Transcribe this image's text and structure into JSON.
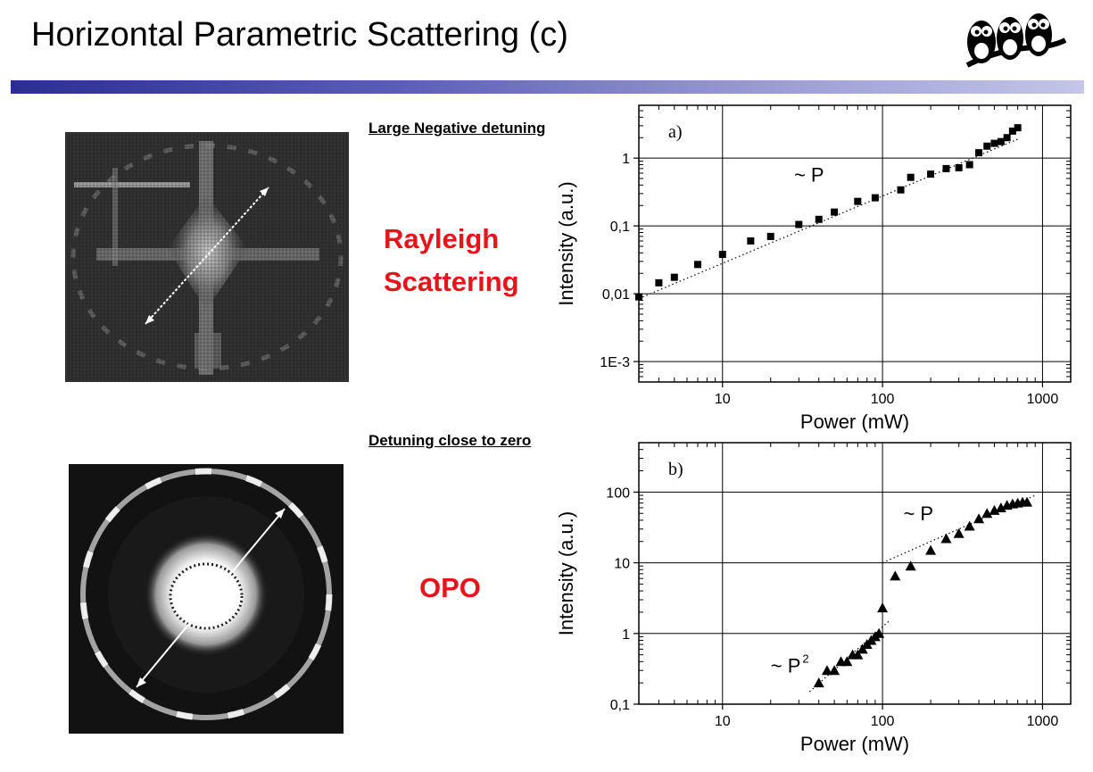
{
  "slide": {
    "title": "Horizontal Parametric Scattering (c)",
    "accent_color": "#2c2e92",
    "label_color": "#e8141b"
  },
  "panel_top": {
    "heading": "Large Negative detuning",
    "label_line1": "Rayleigh",
    "label_line2": "Scattering"
  },
  "panel_bottom": {
    "heading": "Detuning close to zero",
    "label": "OPO"
  },
  "chart_data": [
    {
      "type": "scatter",
      "panel_label": "a)",
      "xlabel": "Power (mW)",
      "ylabel": "Intensity (a.u.)",
      "x_scale": "log",
      "y_scale": "log",
      "xlim": [
        3,
        1500
      ],
      "ylim": [
        0.0005,
        6
      ],
      "x_ticks": [
        10,
        100,
        1000
      ],
      "x_tick_labels": [
        "10",
        "100",
        "1000"
      ],
      "y_ticks": [
        0.001,
        0.01,
        0.1,
        1
      ],
      "y_tick_labels": [
        "1E-3",
        "0,01",
        "0,1",
        "1"
      ],
      "grid": true,
      "marker": "square",
      "annotations": [
        {
          "text": "~ P",
          "x": 28,
          "y": 0.45
        }
      ],
      "fit_lines": [
        {
          "x": [
            3,
            700
          ],
          "y": [
            0.0085,
            1.9
          ]
        }
      ],
      "series": [
        {
          "x": [
            3,
            4,
            5,
            7,
            10,
            15,
            20,
            30,
            40,
            50,
            70,
            90,
            130,
            150,
            200,
            250,
            300,
            350,
            400,
            450,
            500,
            550,
            600,
            650,
            700
          ],
          "y": [
            0.009,
            0.0145,
            0.0175,
            0.027,
            0.038,
            0.06,
            0.07,
            0.105,
            0.125,
            0.16,
            0.23,
            0.26,
            0.34,
            0.52,
            0.58,
            0.7,
            0.72,
            0.8,
            1.2,
            1.5,
            1.65,
            1.75,
            2.0,
            2.5,
            2.8
          ]
        }
      ]
    },
    {
      "type": "scatter",
      "panel_label": "b)",
      "xlabel": "Power (mW)",
      "ylabel": "Intensity (a.u.)",
      "x_scale": "log",
      "y_scale": "log",
      "xlim": [
        3,
        1500
      ],
      "ylim": [
        0.1,
        500
      ],
      "x_ticks": [
        10,
        100,
        1000
      ],
      "x_tick_labels": [
        "10",
        "100",
        "1000"
      ],
      "y_ticks": [
        0.1,
        1,
        10,
        100
      ],
      "y_tick_labels": [
        "0,1",
        "1",
        "10",
        "100"
      ],
      "grid": true,
      "marker": "triangle",
      "annotations": [
        {
          "text": "~ P",
          "x": 135,
          "y": 40
        },
        {
          "text": "~ P",
          "superscript": "2",
          "x": 20,
          "y": 0.28
        }
      ],
      "fit_lines": [
        {
          "x": [
            35,
            110
          ],
          "y": [
            0.15,
            1.5
          ]
        },
        {
          "x": [
            100,
            900
          ],
          "y": [
            10,
            90
          ]
        }
      ],
      "series": [
        {
          "x": [
            40,
            45,
            50,
            55,
            60,
            65,
            70,
            75,
            80,
            85,
            90,
            95,
            100,
            120,
            150,
            200,
            250,
            300,
            350,
            400,
            450,
            500,
            550,
            600,
            650,
            700,
            750,
            800
          ],
          "y": [
            0.2,
            0.3,
            0.3,
            0.4,
            0.4,
            0.5,
            0.5,
            0.6,
            0.7,
            0.8,
            0.9,
            1.0,
            2.3,
            6.5,
            9,
            15,
            22,
            26,
            33,
            42,
            50,
            55,
            60,
            65,
            68,
            70,
            72,
            72
          ]
        }
      ]
    }
  ]
}
